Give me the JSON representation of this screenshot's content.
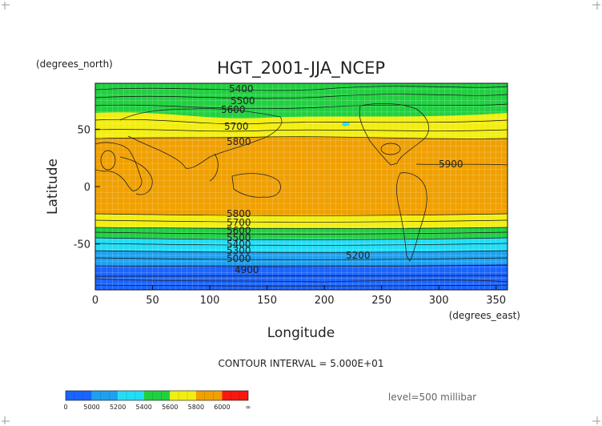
{
  "title": "HGT_2001-JJA_NCEP",
  "y_units": "(degrees_north)",
  "x_units": "(degrees_east)",
  "xlabel": "Longitude",
  "ylabel": "Latitude",
  "x_ticks": [
    "0",
    "50",
    "100",
    "150",
    "200",
    "250",
    "300",
    "350"
  ],
  "y_ticks": [
    "50",
    "0",
    "-50"
  ],
  "contour_interval_text": "CONTOUR INTERVAL = 5.000E+01",
  "level_text": "level=500 millibar",
  "contour_labels": [
    "5400",
    "5500",
    "5600",
    "5700",
    "5800",
    "5900",
    "5800",
    "5700",
    "5600",
    "5500",
    "5400",
    "5300",
    "5200",
    "5000",
    "4900"
  ],
  "colorbar": {
    "labels": [
      "0",
      "5000",
      "5200",
      "5400",
      "5600",
      "5800",
      "6000",
      "∞"
    ],
    "colors": [
      "#1a64ff",
      "#1ea0ee",
      "#22ddf5",
      "#20d040",
      "#f2ee10",
      "#f0a000",
      "#f81810"
    ]
  },
  "band_colors": {
    "deep_blue": "#1a64ff",
    "mid_blue": "#1ea0ee",
    "cyan": "#22ddf5",
    "green": "#20d040",
    "yellow": "#f2ee10",
    "orange": "#f0a000",
    "red": "#f81810"
  },
  "chart_data": {
    "type": "heatmap",
    "title": "HGT_2001-JJA_NCEP",
    "xlabel": "Longitude",
    "ylabel": "Latitude",
    "xlim": [
      0,
      360
    ],
    "ylim": [
      -90,
      90
    ],
    "grid": true,
    "variable_levels": [
      5000,
      5200,
      5400,
      5600,
      5800,
      6000
    ],
    "pressure_level": "500 millibar",
    "zonal_bands": [
      {
        "lat_range": [
          -90,
          -65
        ],
        "range": "< 5000"
      },
      {
        "lat_range": [
          -65,
          -58
        ],
        "range": "5000-5200"
      },
      {
        "lat_range": [
          -58,
          -49
        ],
        "range": "5200-5400"
      },
      {
        "lat_range": [
          -49,
          -38
        ],
        "range": "5400-5600"
      },
      {
        "lat_range": [
          -38,
          -27
        ],
        "range": "5600-5800"
      },
      {
        "lat_range": [
          -27,
          40
        ],
        "range": "5800-6000"
      },
      {
        "lat_range": [
          40,
          58
        ],
        "range": "5600-5800"
      },
      {
        "lat_range": [
          58,
          75
        ],
        "range": "5400-5600"
      },
      {
        "lat_range": [
          75,
          90
        ],
        "range": "5400-5600"
      }
    ]
  }
}
